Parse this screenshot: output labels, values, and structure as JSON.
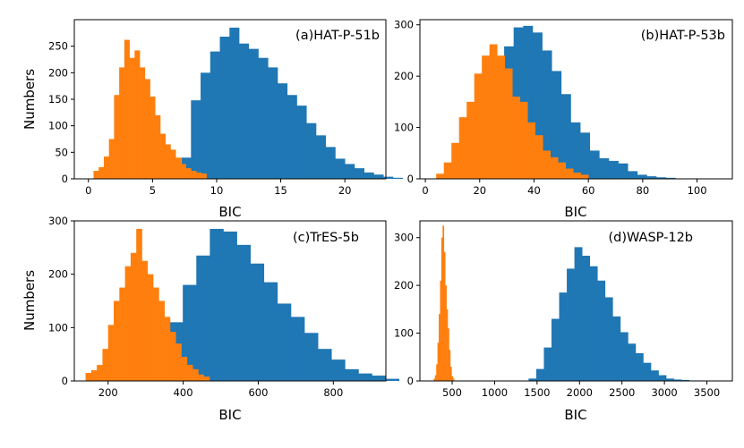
{
  "figure": {
    "shared_ylabel": "Numbers",
    "xlabel": "BIC"
  },
  "colors": {
    "blue": "#1f77b4",
    "orange": "#ff7f0e"
  },
  "chart_data": [
    {
      "type": "bar",
      "title": "(a)HAT-P-51b",
      "xlabel": "BIC",
      "ylabel": "Numbers",
      "xlim": [
        -1.1,
        23.2
      ],
      "ylim": [
        0,
        300
      ],
      "xticks": [
        0,
        5,
        10,
        15,
        20
      ],
      "yticks": [
        0,
        50,
        100,
        150,
        200,
        250
      ],
      "series": [
        {
          "name": "blue",
          "color": "#1f77b4",
          "bin_start": 6.5,
          "bin_width": 0.75,
          "values": [
            10,
            40,
            148,
            200,
            240,
            268,
            285,
            255,
            245,
            228,
            210,
            180,
            158,
            138,
            105,
            82,
            60,
            38,
            28,
            20,
            12,
            8,
            4,
            2
          ]
        },
        {
          "name": "orange",
          "color": "#ff7f0e",
          "bin_start": 0.4,
          "bin_width": 0.4,
          "values": [
            15,
            22,
            42,
            75,
            158,
            210,
            262,
            228,
            242,
            210,
            188,
            155,
            120,
            85,
            65,
            55,
            40,
            28,
            20,
            15,
            12,
            10
          ]
        }
      ]
    },
    {
      "type": "bar",
      "title": "(b)HAT-P-53b",
      "xlabel": "BIC",
      "ylabel": "",
      "xlim": [
        -2,
        113
      ],
      "ylim": [
        0,
        310
      ],
      "xticks": [
        0,
        20,
        40,
        60,
        80,
        100
      ],
      "yticks": [
        0,
        100,
        200,
        300
      ],
      "series": [
        {
          "name": "blue",
          "color": "#1f77b4",
          "bin_start": 11.5,
          "bin_width": 3.5,
          "values": [
            8,
            25,
            60,
            120,
            200,
            258,
            295,
            298,
            285,
            250,
            210,
            165,
            110,
            90,
            55,
            40,
            35,
            30,
            15,
            8,
            5,
            3,
            2
          ]
        },
        {
          "name": "orange",
          "color": "#ff7f0e",
          "bin_start": 4,
          "bin_width": 2.8,
          "values": [
            10,
            32,
            70,
            120,
            150,
            205,
            240,
            262,
            240,
            215,
            160,
            150,
            110,
            85,
            55,
            42,
            32,
            20,
            12,
            8
          ]
        }
      ]
    },
    {
      "type": "bar",
      "title": "(c)TrES-5b",
      "xlabel": "BIC",
      "ylabel": "Numbers",
      "xlim": [
        110,
        940
      ],
      "ylim": [
        0,
        300
      ],
      "xticks": [
        200,
        400,
        600,
        800
      ],
      "yticks": [
        0,
        100,
        200,
        300
      ],
      "series": [
        {
          "name": "blue",
          "color": "#1f77b4",
          "bin_start": 327,
          "bin_width": 36,
          "values": [
            15,
            110,
            180,
            235,
            285,
            280,
            255,
            220,
            185,
            145,
            120,
            90,
            60,
            40,
            22,
            14,
            10,
            4
          ]
        },
        {
          "name": "orange",
          "color": "#ff7f0e",
          "bin_start": 140,
          "bin_width": 15,
          "values": [
            15,
            20,
            30,
            60,
            105,
            150,
            175,
            215,
            240,
            285,
            225,
            200,
            175,
            150,
            120,
            92,
            70,
            45,
            30,
            22,
            12,
            8
          ]
        }
      ]
    },
    {
      "type": "bar",
      "title": "(d)WASP-12b",
      "xlabel": "BIC",
      "ylabel": "",
      "xlim": [
        120,
        3800
      ],
      "ylim": [
        0,
        335
      ],
      "xticks": [
        500,
        1000,
        1500,
        2000,
        2500,
        3000,
        3500
      ],
      "yticks": [
        0,
        100,
        200,
        300
      ],
      "series": [
        {
          "name": "blue",
          "color": "#1f77b4",
          "bin_start": 1400,
          "bin_width": 90,
          "values": [
            5,
            25,
            70,
            130,
            185,
            235,
            280,
            262,
            240,
            210,
            175,
            135,
            102,
            78,
            58,
            38,
            22,
            12,
            5,
            3,
            2,
            1,
            1
          ]
        },
        {
          "name": "orange",
          "color": "#ff7f0e",
          "bin_start": 282,
          "bin_width": 15,
          "values": [
            5,
            12,
            35,
            80,
            140,
            210,
            300,
            325,
            270,
            200,
            150,
            110,
            65,
            30,
            10,
            5
          ]
        }
      ]
    }
  ]
}
